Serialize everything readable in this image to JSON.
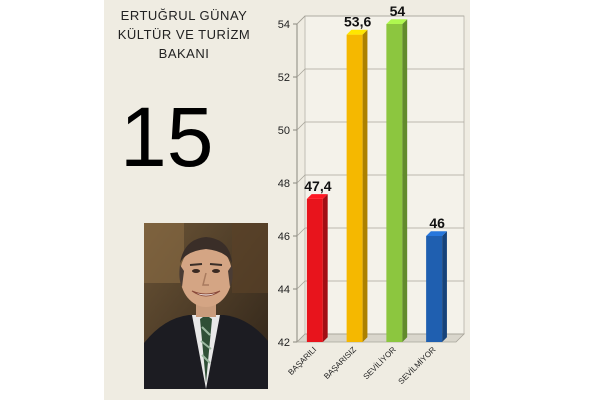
{
  "header": {
    "title_lines": [
      "ERTUĞRUL GÜNAY",
      "KÜLTÜR VE TURİZM",
      "BAKANI"
    ],
    "rank": "15"
  },
  "photo": {
    "icon": "portrait-photo"
  },
  "chart_data": {
    "type": "bar",
    "categories": [
      "BAŞARILI",
      "BAŞARISIZ",
      "SEVİLİYOR",
      "SEVİLMİYOR"
    ],
    "values": [
      47.4,
      53.6,
      54,
      46
    ],
    "value_labels": [
      "47,4",
      "53,6",
      "54",
      "46"
    ],
    "colors": [
      "#e8141c",
      "#f5b800",
      "#8cc63f",
      "#1f5fb0"
    ],
    "ylim": [
      42,
      54
    ],
    "yticks": [
      42,
      44,
      46,
      48,
      50,
      52,
      54
    ],
    "grid": true,
    "legend": "none",
    "title": "",
    "xlabel": "",
    "ylabel": ""
  }
}
